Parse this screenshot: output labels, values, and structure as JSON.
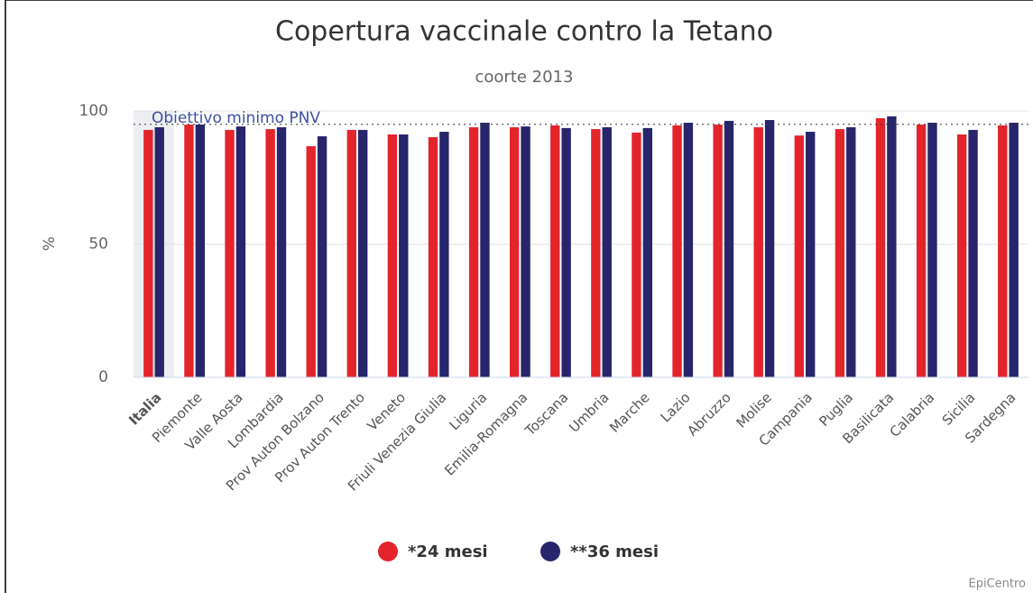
{
  "chart_data": {
    "type": "bar",
    "title": "Copertura vaccinale contro la Tetano",
    "subtitle": "coorte 2013",
    "y_label": "%",
    "credit": "EpiCentro",
    "categories": [
      "Italia",
      "Piemonte",
      "Valle Aosta",
      "Lombardia",
      "Prov Auton Bolzano",
      "Prov Auton Trento",
      "Veneto",
      "Friuli Venezia Giulia",
      "Liguria",
      "Emilia-Romagna",
      "Toscana",
      "Umbria",
      "Marche",
      "Lazio",
      "Abruzzo",
      "Molise",
      "Campania",
      "Puglia",
      "Basilicata",
      "Calabria",
      "Sicilia",
      "Sardegna"
    ],
    "series": [
      {
        "name": "*24 mesi",
        "color": "#e3242b",
        "values": [
          92.9,
          94.9,
          92.9,
          93.2,
          86.8,
          92.9,
          91.2,
          90.2,
          93.9,
          93.9,
          94.6,
          93.2,
          91.9,
          94.6,
          94.9,
          93.9,
          90.8,
          93.2,
          97.3,
          94.9,
          91.2,
          94.6
        ]
      },
      {
        "name": "**36 mesi",
        "color": "#27256b",
        "values": [
          93.9,
          94.9,
          94.2,
          93.9,
          90.5,
          92.9,
          91.2,
          92.2,
          95.6,
          94.2,
          93.6,
          93.9,
          93.6,
          95.6,
          96.3,
          96.6,
          92.2,
          93.9,
          98.0,
          95.6,
          92.9,
          95.6
        ]
      }
    ],
    "target": {
      "value": 95,
      "label": "Obiettivo minimo PNV"
    },
    "ylim": [
      0,
      100
    ],
    "yticks": [
      0,
      50,
      100
    ],
    "grid": true
  }
}
